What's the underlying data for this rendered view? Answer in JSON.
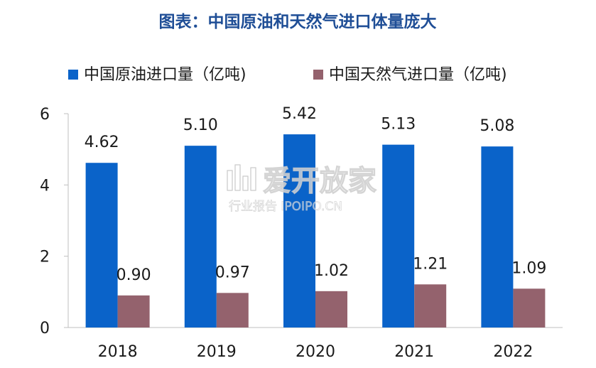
{
  "chart_data": {
    "type": "bar",
    "title": "图表：中国原油和天然气进口体量庞大",
    "categories": [
      "2018",
      "2019",
      "2020",
      "2021",
      "2022"
    ],
    "series": [
      {
        "name": "中国原油进口量（亿吨)",
        "values": [
          4.62,
          5.1,
          5.42,
          5.13,
          5.08
        ],
        "labels": [
          "4.62",
          "5.10",
          "5.42",
          "5.13",
          "5.08"
        ],
        "color": "#0a63c9"
      },
      {
        "name": "中国天然气进口量（亿吨)",
        "values": [
          0.9,
          0.97,
          1.02,
          1.21,
          1.09
        ],
        "labels": [
          "0.90",
          "0.97",
          "1.02",
          "1.21",
          "1.09"
        ],
        "color": "#94626d"
      }
    ],
    "ylim": [
      0,
      6
    ],
    "yticks": [
      "0",
      "2",
      "4",
      "6"
    ],
    "xlabel": "",
    "ylabel": "",
    "grid": false,
    "legend_position": "top"
  },
  "watermark": {
    "main": "爱开放家",
    "sub": "行业报告 IPOIPO.CN"
  }
}
